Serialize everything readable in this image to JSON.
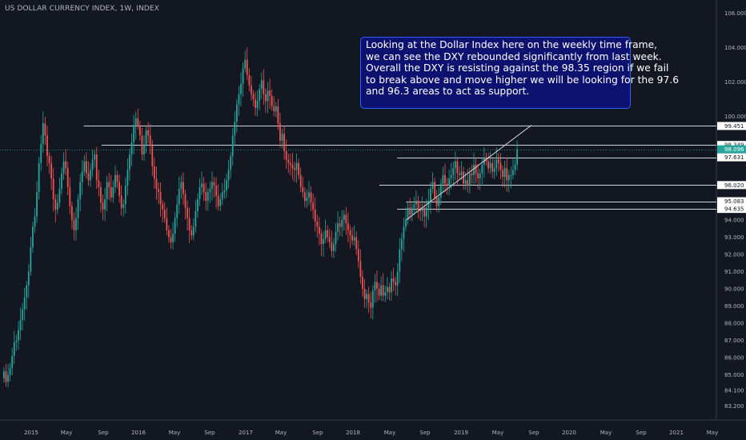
{
  "chart_data": {
    "type": "candlestick",
    "title": "US DOLLAR CURRENCY INDEX, 1W, INDEX",
    "annotation_lines": [
      "Looking at the Dollar Index here on the weekly time frame,",
      "we can see the DXY rebounded significantly from last week.",
      "Overall the DXY is resisting against the 98.35 region if we fail",
      "to break above and move higher we will be looking for the 97.6",
      "and 96.3 areas to act as support."
    ],
    "y_ticks": [
      "106.000",
      "104.000",
      "102.000",
      "100.000",
      "94.000",
      "93.000",
      "92.000",
      "91.000",
      "90.000",
      "89.000",
      "88.000",
      "87.000",
      "86.000",
      "85.000",
      "84.100",
      "83.200"
    ],
    "x_ticks": [
      "2015",
      "May",
      "Sep",
      "2016",
      "May",
      "Sep",
      "2017",
      "May",
      "Sep",
      "2018",
      "May",
      "Sep",
      "2019",
      "May",
      "Sep",
      "2020",
      "May",
      "Sep",
      "2021",
      "May"
    ],
    "ylim": [
      82.8,
      106.3
    ],
    "price_labels": [
      {
        "value": 99.451,
        "text": "99.451",
        "kind": "level"
      },
      {
        "value": 98.349,
        "text": "98.349",
        "kind": "level"
      },
      {
        "value": 98.096,
        "text": "98.096",
        "kind": "current"
      },
      {
        "value": 97.631,
        "text": "97.631",
        "kind": "level"
      },
      {
        "value": 96.02,
        "text": "96.020",
        "kind": "level"
      },
      {
        "value": 95.083,
        "text": "95.083",
        "kind": "level"
      },
      {
        "value": 94.635,
        "text": "94.635",
        "kind": "level"
      }
    ],
    "horizontal_levels": [
      {
        "value": 99.451,
        "x_from": "2015-10"
      },
      {
        "value": 98.349,
        "x_from": "2015-12"
      },
      {
        "value": 97.631,
        "x_from": "2018-09"
      },
      {
        "value": 96.02,
        "x_from": "2018-07"
      },
      {
        "value": 95.083,
        "x_from": "2018-10"
      },
      {
        "value": 94.635,
        "x_from": "2018-09"
      }
    ],
    "current_price_line": 98.096,
    "trendline": {
      "from": [
        "2018-10",
        94.0
      ],
      "to": [
        "2019-12",
        99.5
      ]
    },
    "weekly_closes": [
      85.2,
      84.6,
      85.0,
      85.4,
      86.1,
      86.9,
      87.0,
      87.6,
      88.2,
      88.8,
      89.5,
      90.2,
      91.0,
      92.4,
      93.6,
      94.2,
      95.6,
      97.3,
      98.4,
      99.6,
      98.9,
      97.7,
      97.3,
      96.4,
      95.2,
      94.6,
      95.0,
      95.8,
      96.7,
      97.4,
      97.0,
      95.9,
      94.8,
      94.0,
      93.4,
      94.1,
      95.2,
      96.2,
      96.8,
      97.4,
      96.7,
      96.3,
      96.9,
      97.5,
      97.8,
      96.3,
      95.9,
      95.0,
      94.6,
      95.2,
      96.2,
      95.9,
      95.3,
      95.9,
      96.6,
      96.2,
      95.4,
      94.7,
      94.9,
      96.0,
      96.9,
      97.8,
      98.5,
      99.4,
      99.9,
      99.5,
      98.9,
      97.8,
      98.3,
      99.2,
      98.9,
      98.3,
      97.1,
      96.4,
      95.8,
      95.6,
      94.9,
      94.6,
      94.1,
      93.4,
      93.0,
      92.7,
      93.2,
      94.1,
      94.9,
      95.8,
      96.2,
      95.5,
      94.7,
      94.1,
      93.4,
      93.1,
      93.6,
      94.5,
      95.2,
      95.9,
      96.1,
      95.6,
      95.1,
      95.6,
      95.8,
      96.2,
      96.0,
      95.4,
      94.8,
      95.2,
      95.6,
      95.7,
      96.3,
      96.9,
      97.7,
      98.9,
      99.7,
      100.7,
      101.3,
      101.9,
      102.8,
      103.3,
      102.4,
      101.8,
      101.3,
      101.0,
      100.5,
      100.9,
      101.6,
      102.1,
      101.3,
      100.9,
      101.5,
      101.2,
      100.6,
      100.3,
      100.6,
      99.6,
      98.6,
      99.0,
      98.0,
      97.5,
      97.3,
      97.2,
      97.0,
      96.9,
      97.3,
      96.6,
      95.9,
      95.6,
      95.1,
      95.3,
      95.6,
      95.0,
      94.6,
      93.9,
      93.6,
      93.2,
      92.6,
      92.9,
      93.4,
      93.0,
      92.7,
      92.2,
      92.6,
      93.3,
      93.8,
      93.6,
      94.0,
      94.3,
      93.8,
      93.4,
      93.1,
      92.8,
      93.0,
      92.3,
      91.6,
      90.7,
      90.0,
      89.4,
      89.7,
      89.2,
      88.9,
      89.9,
      90.4,
      90.0,
      89.6,
      90.2,
      89.6,
      89.8,
      90.1,
      89.8,
      90.6,
      90.4,
      90.2,
      91.0,
      92.3,
      92.9,
      93.6,
      94.0,
      94.7,
      94.3,
      94.7,
      94.9,
      95.1,
      94.6,
      94.5,
      94.7,
      94.2,
      94.7,
      95.1,
      95.8,
      96.2,
      95.3,
      94.8,
      95.3,
      96.1,
      96.6,
      96.1,
      96.0,
      96.4,
      96.6,
      97.0,
      97.4,
      96.7,
      96.6,
      96.8,
      96.1,
      96.3,
      96.0,
      96.7,
      96.6,
      97.2,
      96.7,
      96.4,
      96.7,
      97.2,
      97.6,
      97.4,
      97.0,
      97.3,
      96.8,
      97.0,
      97.5,
      97.3,
      96.9,
      96.5,
      97.0,
      96.3,
      96.6,
      96.6,
      96.9,
      97.2,
      98.1
    ]
  }
}
